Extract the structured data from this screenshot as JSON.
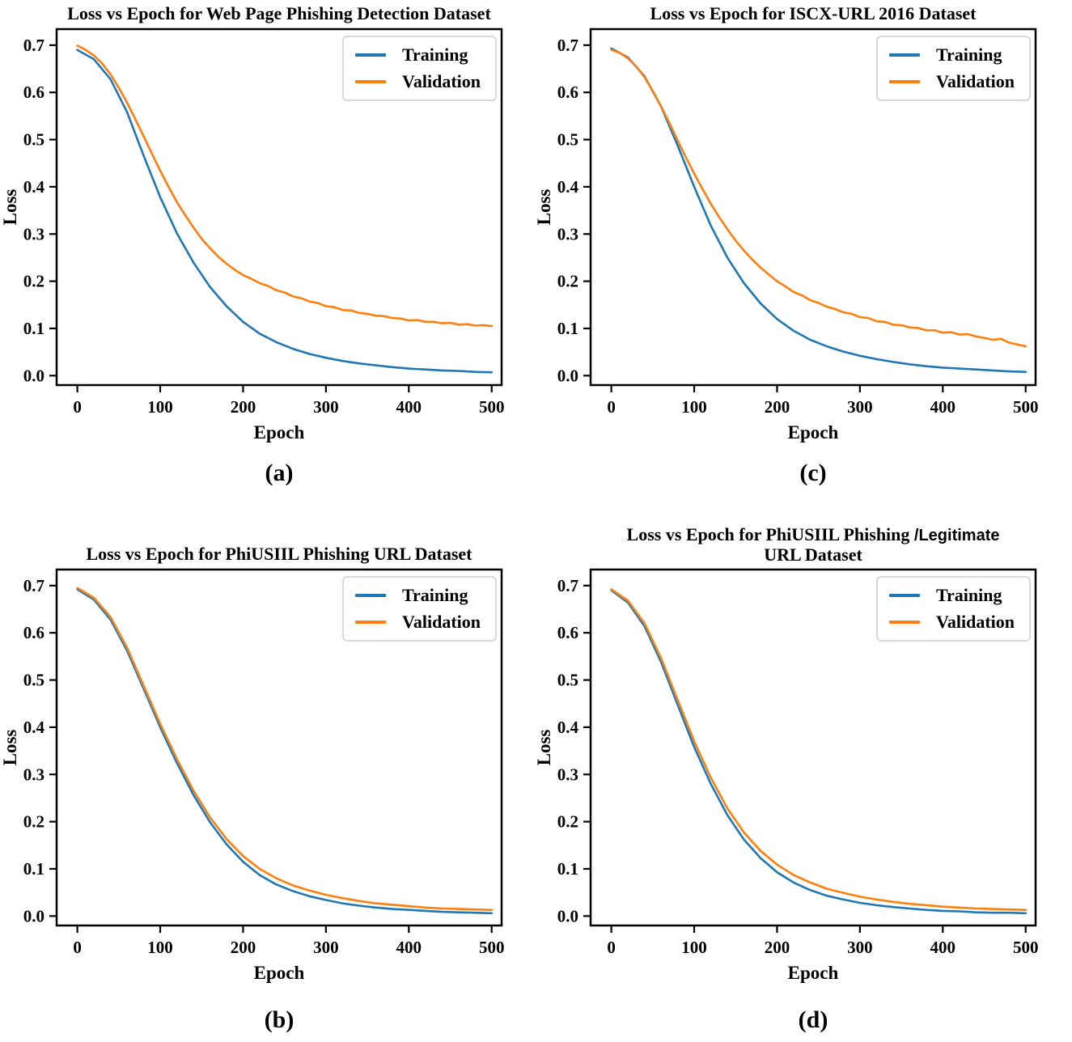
{
  "figure": {
    "background": "#ffffff"
  },
  "colors": {
    "training": "#1f77b4",
    "validation": "#ff7f0e",
    "axis": "#000000"
  },
  "axes": {
    "x_label": "Epoch",
    "y_label": "Loss",
    "x_ticks": [
      0,
      100,
      200,
      300,
      400,
      500
    ],
    "y_ticks": [
      "0.0",
      "0.1",
      "0.2",
      "0.3",
      "0.4",
      "0.5",
      "0.6",
      "0.7"
    ],
    "xlim": [
      -25,
      512
    ],
    "ylim": [
      -0.02,
      0.734
    ],
    "grid": false,
    "legend_position": "upper right"
  },
  "chart_data": [
    {
      "type": "line",
      "title": "Loss vs Epoch for Web Page Phishing Detection Dataset",
      "title_sans": "",
      "title_line2": "",
      "caption": "(a)",
      "xlabel": "Epoch",
      "ylabel": "Loss",
      "legend": [
        "Training",
        "Validation"
      ],
      "series": [
        {
          "name": "Training",
          "color": "training",
          "x_step": 20,
          "y": [
            0.69,
            0.67,
            0.628,
            0.558,
            0.466,
            0.378,
            0.302,
            0.24,
            0.188,
            0.147,
            0.114,
            0.089,
            0.071,
            0.057,
            0.046,
            0.038,
            0.031,
            0.026,
            0.022,
            0.018,
            0.015,
            0.013,
            0.011,
            0.01,
            0.008,
            0.007
          ]
        },
        {
          "name": "Validation",
          "color": "validation",
          "x_step": 10,
          "y": [
            0.699,
            0.69,
            0.678,
            0.661,
            0.638,
            0.61,
            0.578,
            0.543,
            0.507,
            0.47,
            0.434,
            0.4,
            0.368,
            0.34,
            0.314,
            0.29,
            0.27,
            0.252,
            0.237,
            0.224,
            0.213,
            0.205,
            0.196,
            0.19,
            0.181,
            0.176,
            0.168,
            0.164,
            0.157,
            0.154,
            0.147,
            0.145,
            0.139,
            0.138,
            0.133,
            0.131,
            0.127,
            0.126,
            0.122,
            0.121,
            0.117,
            0.118,
            0.114,
            0.114,
            0.111,
            0.112,
            0.108,
            0.109,
            0.106,
            0.107,
            0.105
          ]
        }
      ]
    },
    {
      "type": "line",
      "title": "Loss vs Epoch for ISCX-URL 2016 Dataset",
      "title_sans": "",
      "title_line2": "",
      "caption": "(c)",
      "xlabel": "Epoch",
      "ylabel": "Loss",
      "legend": [
        "Training",
        "Validation"
      ],
      "series": [
        {
          "name": "Training",
          "color": "training",
          "x_step": 20,
          "y": [
            0.693,
            0.674,
            0.634,
            0.57,
            0.488,
            0.4,
            0.318,
            0.25,
            0.196,
            0.153,
            0.12,
            0.095,
            0.076,
            0.062,
            0.051,
            0.042,
            0.035,
            0.029,
            0.024,
            0.02,
            0.017,
            0.015,
            0.013,
            0.011,
            0.009,
            0.008
          ]
        },
        {
          "name": "Validation",
          "color": "validation",
          "x_step": 10,
          "y": [
            0.69,
            0.684,
            0.672,
            0.655,
            0.632,
            0.603,
            0.57,
            0.535,
            0.498,
            0.462,
            0.428,
            0.395,
            0.364,
            0.336,
            0.31,
            0.286,
            0.265,
            0.246,
            0.229,
            0.214,
            0.2,
            0.189,
            0.177,
            0.17,
            0.16,
            0.154,
            0.146,
            0.141,
            0.134,
            0.131,
            0.124,
            0.122,
            0.115,
            0.114,
            0.108,
            0.107,
            0.102,
            0.101,
            0.096,
            0.096,
            0.091,
            0.092,
            0.087,
            0.088,
            0.083,
            0.08,
            0.076,
            0.078,
            0.07,
            0.066,
            0.062
          ]
        }
      ]
    },
    {
      "type": "line",
      "title": "Loss vs Epoch for PhiUSIIL Phishing URL Dataset",
      "title_sans": "",
      "title_line2": "",
      "caption": "(b)",
      "xlabel": "Epoch",
      "ylabel": "Loss",
      "legend": [
        "Training",
        "Validation"
      ],
      "series": [
        {
          "name": "Training",
          "color": "training",
          "x_step": 20,
          "y": [
            0.692,
            0.67,
            0.628,
            0.562,
            0.482,
            0.4,
            0.325,
            0.257,
            0.199,
            0.152,
            0.115,
            0.087,
            0.067,
            0.053,
            0.042,
            0.034,
            0.027,
            0.022,
            0.018,
            0.015,
            0.013,
            0.011,
            0.009,
            0.008,
            0.007,
            0.006
          ]
        },
        {
          "name": "Validation",
          "color": "validation",
          "x_step": 20,
          "y": [
            0.695,
            0.674,
            0.633,
            0.568,
            0.488,
            0.407,
            0.333,
            0.266,
            0.209,
            0.163,
            0.127,
            0.1,
            0.08,
            0.065,
            0.054,
            0.045,
            0.038,
            0.032,
            0.027,
            0.024,
            0.021,
            0.018,
            0.016,
            0.015,
            0.014,
            0.013
          ]
        }
      ]
    },
    {
      "type": "line",
      "title": "Loss vs Epoch for PhiUSIIL Phishing ",
      "title_sans": "/Legitimate",
      "title_line2": "URL Dataset",
      "caption": "(d)",
      "xlabel": "Epoch",
      "ylabel": "Loss",
      "legend": [
        "Training",
        "Validation"
      ],
      "series": [
        {
          "name": "Training",
          "color": "training",
          "x_step": 20,
          "y": [
            0.69,
            0.664,
            0.614,
            0.538,
            0.448,
            0.358,
            0.28,
            0.214,
            0.162,
            0.123,
            0.093,
            0.071,
            0.055,
            0.043,
            0.035,
            0.028,
            0.023,
            0.019,
            0.016,
            0.013,
            0.011,
            0.01,
            0.008,
            0.007,
            0.007,
            0.006
          ]
        },
        {
          "name": "Validation",
          "color": "validation",
          "x_step": 20,
          "y": [
            0.692,
            0.668,
            0.62,
            0.546,
            0.458,
            0.37,
            0.293,
            0.228,
            0.177,
            0.138,
            0.109,
            0.087,
            0.071,
            0.058,
            0.049,
            0.041,
            0.035,
            0.03,
            0.026,
            0.023,
            0.02,
            0.018,
            0.016,
            0.015,
            0.014,
            0.013
          ]
        }
      ]
    }
  ]
}
